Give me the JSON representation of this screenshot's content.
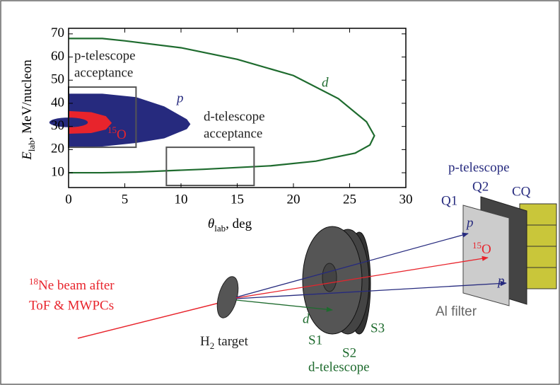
{
  "chart_data": {
    "type": "line",
    "xlabel": {
      "symbol": "θ",
      "sub": "lab",
      "rest": ", deg"
    },
    "ylabel": {
      "symbol": "E",
      "sub": "lab",
      "rest": ", MeV/nucleon"
    },
    "xlim": [
      0,
      30
    ],
    "ylim": [
      3.6,
      72.4
    ],
    "xticks": [
      0,
      5,
      10,
      15,
      20,
      25,
      30
    ],
    "yticks": [
      10,
      20,
      30,
      40,
      50,
      60,
      70
    ],
    "series": [
      {
        "name": "d",
        "color": "#1e6b2e",
        "x": [
          0,
          3,
          5,
          10,
          15,
          20,
          24,
          26.5,
          27.2,
          26.8,
          25.5,
          22,
          18,
          12,
          6,
          3,
          0
        ],
        "values": [
          68,
          68,
          67,
          64,
          59,
          52,
          42,
          32,
          26,
          22,
          18.5,
          15,
          13,
          11.5,
          10.3,
          10,
          10
        ]
      },
      {
        "name": "p",
        "color": "#262a7e",
        "x": [
          0,
          3,
          6,
          8.5,
          10.5,
          10.8,
          10.5,
          8.5,
          6,
          3,
          0
        ],
        "values": [
          44,
          44,
          42.5,
          38.5,
          33,
          31,
          29,
          25,
          23,
          21.5,
          21
        ]
      },
      {
        "name": {
          "sup": "15",
          "text": "O"
        },
        "color": "#e8242c",
        "x": [
          0,
          2,
          3.3,
          3.8,
          3.3,
          2,
          0
        ],
        "values": [
          36.5,
          36,
          34.3,
          31.5,
          28.8,
          27.3,
          27
        ]
      }
    ],
    "boxes": [
      {
        "label": [
          "p-telescope",
          "acceptance"
        ],
        "x": [
          0,
          6
        ],
        "y": [
          21,
          47
        ]
      },
      {
        "label": [
          "d-telescope",
          "acceptance"
        ],
        "x": [
          8.7,
          16.5
        ],
        "y": [
          4.5,
          21
        ]
      }
    ]
  },
  "diagram": {
    "beam": {
      "sup": "18",
      "line1": "Ne beam after",
      "line2": "ToF & MWPCs"
    },
    "target": {
      "symbol": "H",
      "sub": "2",
      "rest": " target"
    },
    "d_label": "d",
    "detectors": [
      "S1",
      "S2",
      "S3"
    ],
    "d_telescope": "d-telescope",
    "p_telescope": "p-telescope",
    "telescope_parts": [
      "Q1",
      "Q2",
      "CQ"
    ],
    "particles": {
      "p": "p",
      "o_sup": "15",
      "o": "O"
    },
    "filter": "Al filter"
  }
}
